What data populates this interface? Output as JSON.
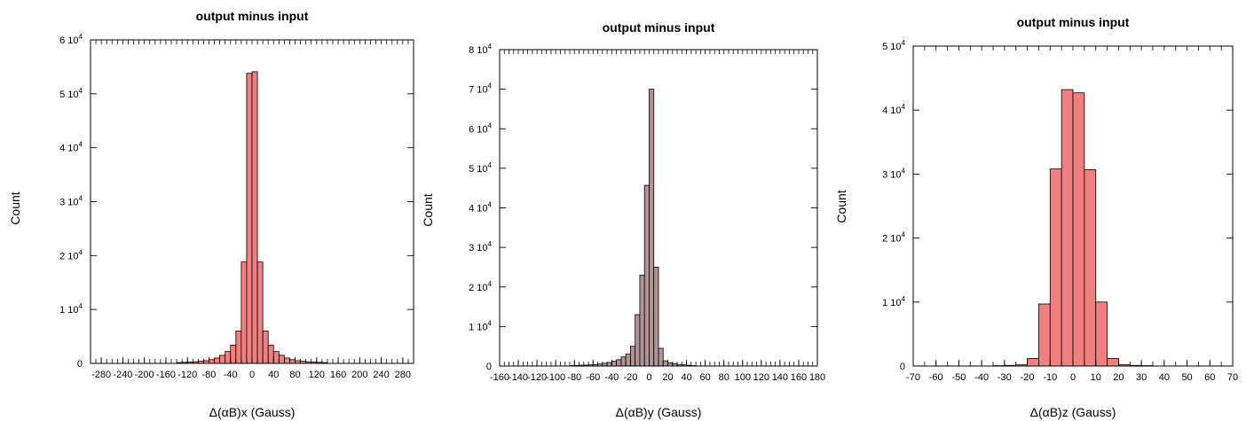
{
  "chart_data": [
    {
      "type": "bar",
      "title": "output minus input",
      "xlabel": "Δ(αB)x (Gauss)",
      "ylabel": "Count",
      "bar_color": "#f08080",
      "xlim": [
        -300,
        300
      ],
      "ylim": [
        0,
        60000
      ],
      "grid": false,
      "legend": "none",
      "x_ticks": [
        "-280",
        "-240",
        "-200",
        "-160",
        "-120",
        "-80",
        "-40",
        "0",
        "40",
        "80",
        "120",
        "160",
        "200",
        "240",
        "280"
      ],
      "y_ticks": [
        "0",
        "1 10",
        "2 10",
        "3 10",
        "4 10",
        "5 10",
        "6 10"
      ],
      "y_tick_exponent": "4",
      "bin_width": 10,
      "bin_centers": [
        -135,
        -125,
        -115,
        -105,
        -95,
        -85,
        -75,
        -65,
        -55,
        -45,
        -35,
        -25,
        -15,
        -5,
        5,
        15,
        25,
        35,
        45,
        55,
        65,
        75,
        85,
        95,
        105,
        115,
        125,
        135
      ],
      "values": [
        150,
        200,
        250,
        300,
        400,
        500,
        700,
        1000,
        1500,
        2200,
        3400,
        6000,
        18800,
        53800,
        54100,
        18800,
        6000,
        3400,
        2200,
        1500,
        1000,
        700,
        500,
        400,
        300,
        250,
        200,
        150
      ]
    },
    {
      "type": "bar",
      "title": "output minus input",
      "xlabel": "Δ(αB)y (Gauss)",
      "ylabel": "Count",
      "bar_color": "#b09494",
      "xlim": [
        -160,
        180
      ],
      "ylim": [
        0,
        80000
      ],
      "grid": false,
      "legend": "none",
      "x_ticks": [
        "-160",
        "-140",
        "-120",
        "-100",
        "-80",
        "-60",
        "-40",
        "-20",
        "0",
        "20",
        "40",
        "60",
        "80",
        "100",
        "120",
        "140",
        "160",
        "180"
      ],
      "y_ticks": [
        "0",
        "1 10",
        "2 10",
        "3 10",
        "4 10",
        "5 10",
        "6 10",
        "7 10",
        "8 10"
      ],
      "y_tick_exponent": "4",
      "bin_width": 5,
      "bin_centers": [
        -82.5,
        -77.5,
        -72.5,
        -67.5,
        -62.5,
        -57.5,
        -52.5,
        -47.5,
        -42.5,
        -37.5,
        -32.5,
        -27.5,
        -22.5,
        -17.5,
        -12.5,
        -7.5,
        -2.5,
        2.5,
        7.5,
        12.5,
        17.5,
        22.5,
        27.5,
        32.5,
        37.5,
        42.5,
        47.5
      ],
      "values": [
        100,
        150,
        200,
        250,
        300,
        400,
        500,
        700,
        900,
        1200,
        1600,
        2300,
        3000,
        5000,
        13000,
        23000,
        45700,
        70000,
        25000,
        4500,
        1300,
        800,
        600,
        400,
        300,
        200,
        100
      ]
    },
    {
      "type": "bar",
      "title": "output minus input",
      "xlabel": "Δ(αB)z (Gauss)",
      "ylabel": "Count",
      "bar_color": "#f08080",
      "xlim": [
        -70,
        70
      ],
      "ylim": [
        0,
        50000
      ],
      "grid": false,
      "legend": "none",
      "x_ticks": [
        "-70",
        "-60",
        "-50",
        "-40",
        "-30",
        "-20",
        "-10",
        "0",
        "10",
        "20",
        "30",
        "40",
        "50",
        "60",
        "70"
      ],
      "y_ticks": [
        "0",
        "1 10",
        "2 10",
        "3 10",
        "4 10",
        "5 10"
      ],
      "y_tick_exponent": "4",
      "bin_width": 5,
      "bin_centers": [
        -32.5,
        -27.5,
        -22.5,
        -17.5,
        -12.5,
        -7.5,
        -2.5,
        2.5,
        7.5,
        12.5,
        17.5,
        22.5,
        27.5,
        32.5
      ],
      "values": [
        60,
        100,
        200,
        1200,
        9700,
        30800,
        43200,
        42700,
        30700,
        10000,
        1200,
        200,
        100,
        60
      ]
    }
  ]
}
